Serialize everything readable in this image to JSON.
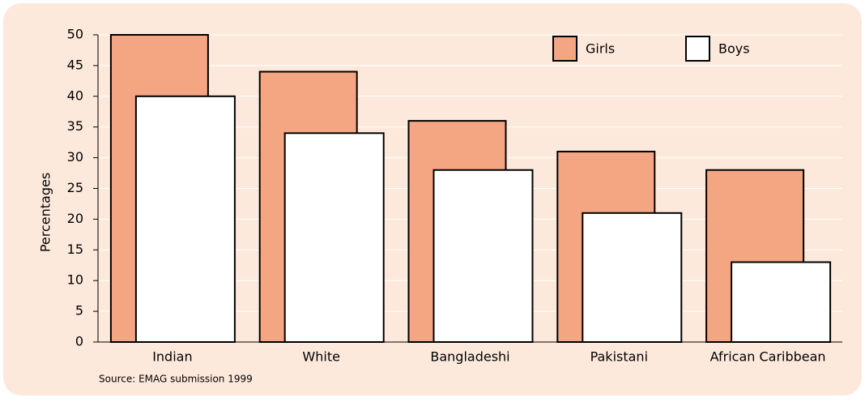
{
  "chart_data": {
    "type": "bar",
    "y_label": "Percentages",
    "source": "Source: EMAG submission 1999",
    "categories": [
      "Indian",
      "White",
      "Bangladeshi",
      "Pakistani",
      "African Caribbean"
    ],
    "series": [
      {
        "name": "Girls",
        "color": "#f4a582",
        "values": [
          50,
          44,
          36,
          31,
          28
        ]
      },
      {
        "name": "Boys",
        "color": "#ffffff",
        "values": [
          40,
          34,
          28,
          21,
          13
        ]
      }
    ],
    "ylim": [
      0,
      50
    ],
    "yticks": [
      0,
      5,
      10,
      15,
      20,
      25,
      30,
      35,
      40,
      45,
      50
    ],
    "grid": true
  }
}
